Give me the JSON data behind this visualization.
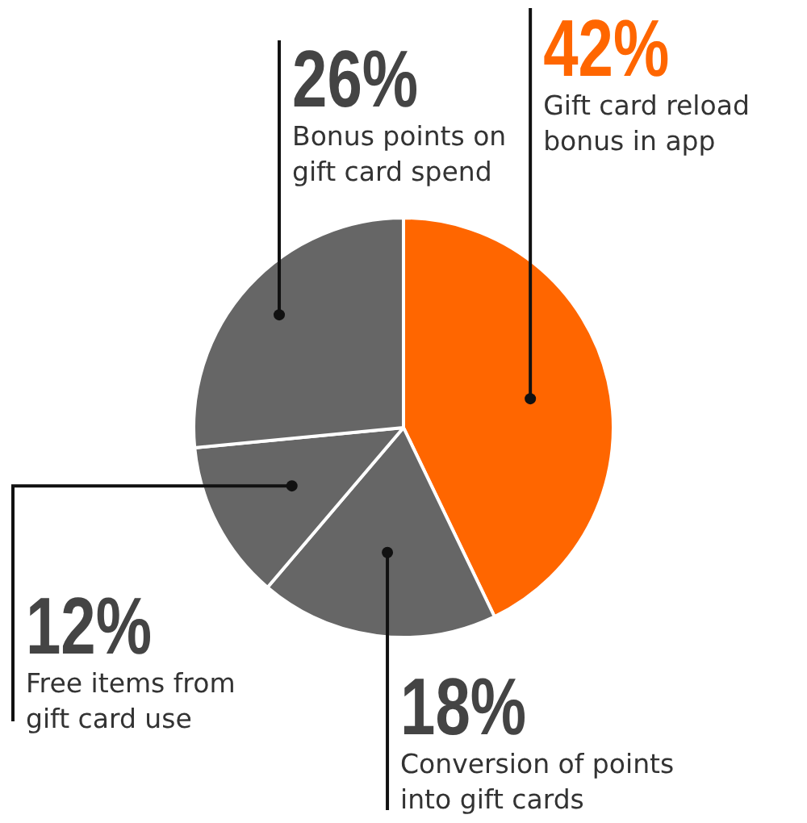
{
  "chart_data": {
    "type": "pie",
    "categories": [
      "Gift card reload bonus in app",
      "Conversion of points into gift cards",
      "Free items from gift card use",
      "Bonus points on gift card spend"
    ],
    "values": [
      42,
      18,
      12,
      26
    ],
    "colors": [
      "#ff6600",
      "#666666",
      "#666666",
      "#666666"
    ],
    "value_labels": [
      "42%",
      "18%",
      "12%",
      "26%"
    ]
  }
}
